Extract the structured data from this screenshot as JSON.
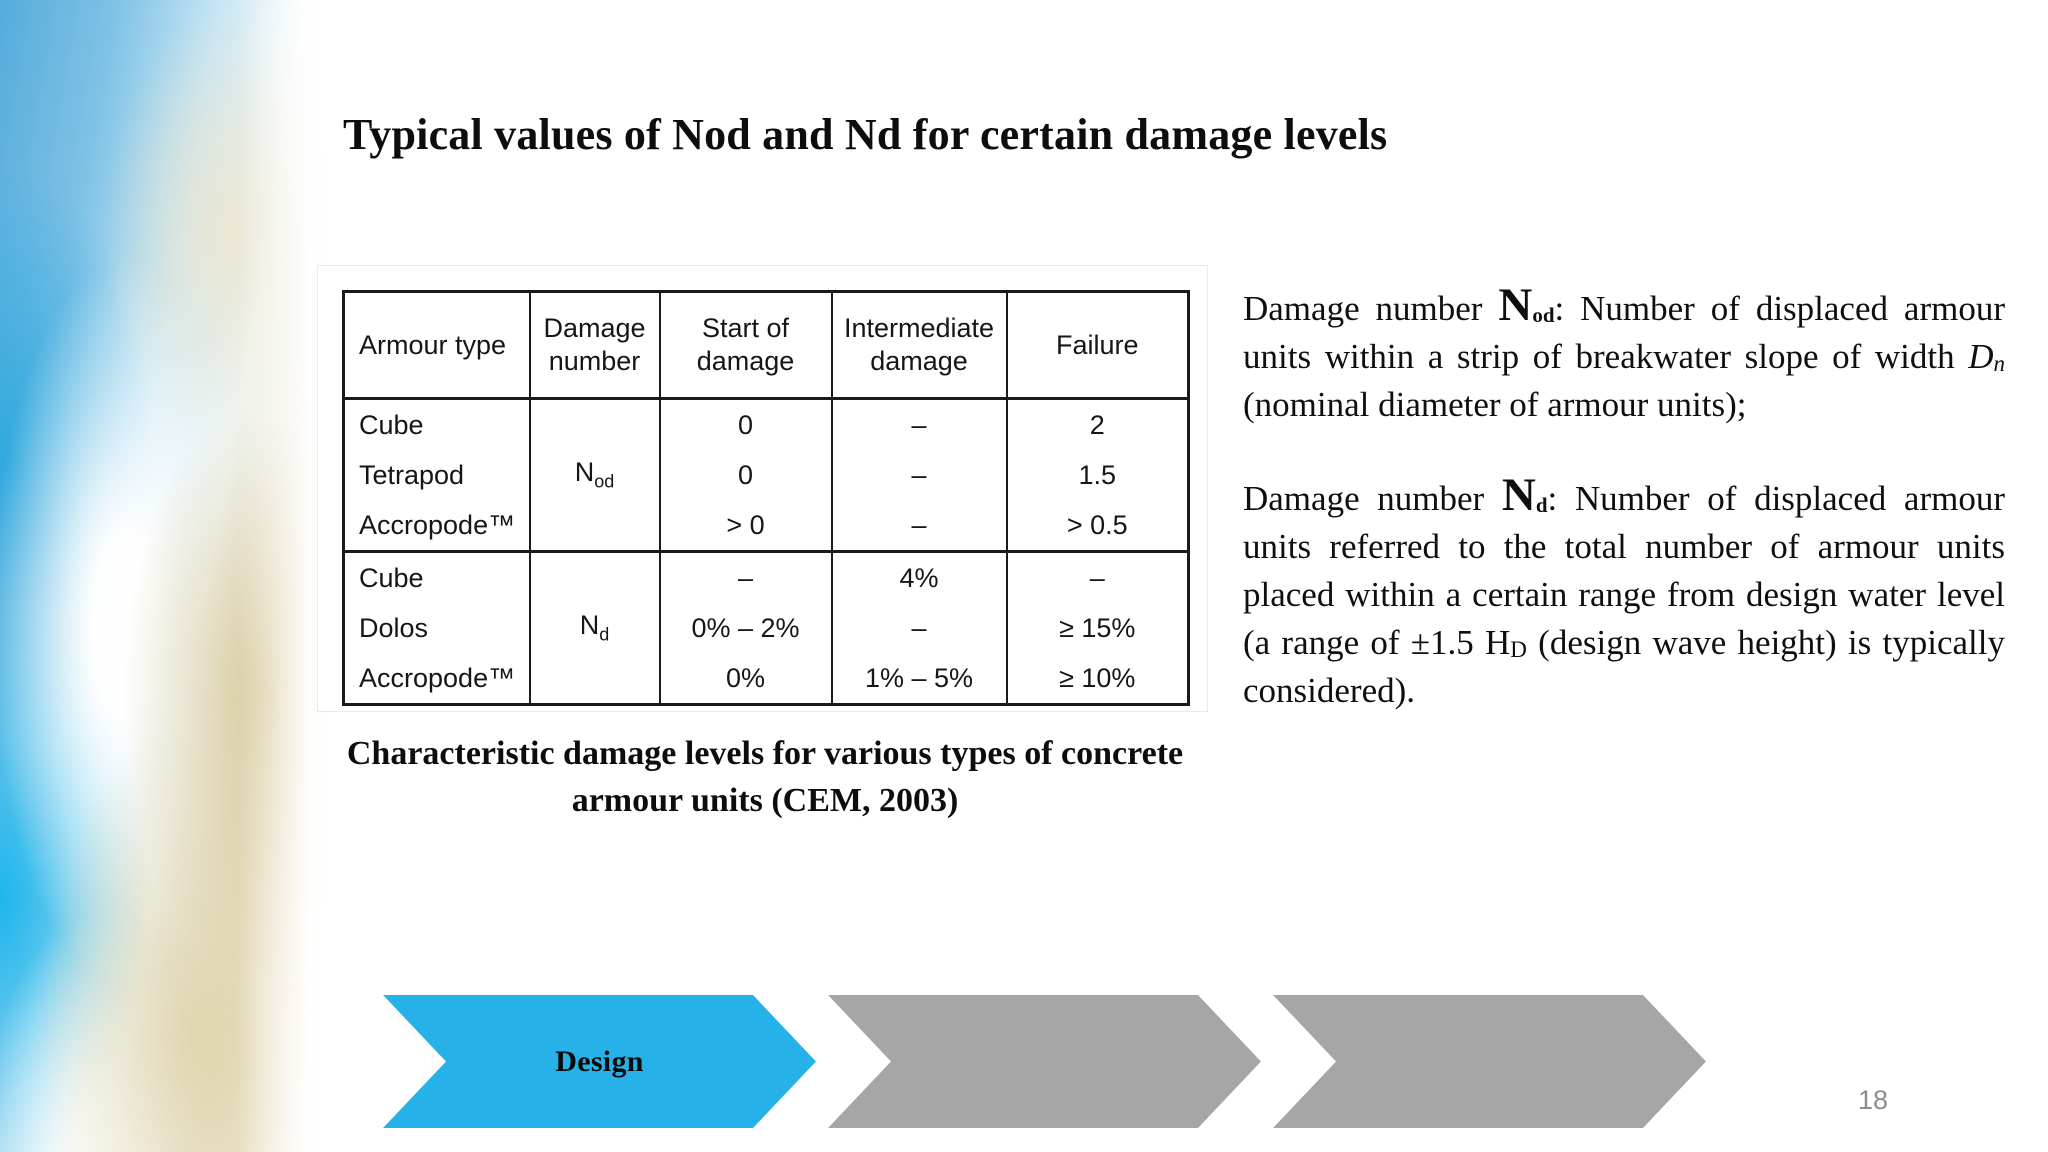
{
  "slide": {
    "title": "Typical values of Nod and Nd for certain damage levels",
    "page_number": "18"
  },
  "table": {
    "caption": "Characteristic damage levels for various types of concrete armour units (CEM, 2003)",
    "headers": [
      "Armour type",
      "Damage number",
      "Start of damage",
      "Intermediate damage",
      "Failure"
    ],
    "sections": [
      {
        "damage_number": {
          "base": "N",
          "sub": "od"
        },
        "rows": [
          {
            "armour_type": "Cube",
            "start_of_damage": "0",
            "intermediate_damage": "–",
            "failure": "2"
          },
          {
            "armour_type": "Tetrapod",
            "start_of_damage": "0",
            "intermediate_damage": "–",
            "failure": "1.5"
          },
          {
            "armour_type": "Accropode™",
            "start_of_damage": "> 0",
            "intermediate_damage": "–",
            "failure": "> 0.5"
          }
        ]
      },
      {
        "damage_number": {
          "base": "N",
          "sub": "d"
        },
        "rows": [
          {
            "armour_type": "Cube",
            "start_of_damage": "–",
            "intermediate_damage": "4%",
            "failure": "–"
          },
          {
            "armour_type": "Dolos",
            "start_of_damage": "0% – 2%",
            "intermediate_damage": "–",
            "failure": "≥ 15%"
          },
          {
            "armour_type": "Accropode™",
            "start_of_damage": "0%",
            "intermediate_damage": "1% – 5%",
            "failure": "≥ 10%"
          }
        ]
      }
    ]
  },
  "definitions": [
    {
      "lead": "Damage number ",
      "symbol": "N",
      "symbol_sub": "od",
      "text_after_symbol": ": Number of displaced armour units within a strip of breakwater slope of width ",
      "variable": "D",
      "variable_sub": "n",
      "text_end": " (nominal diameter of armour units);"
    },
    {
      "lead": "Damage number ",
      "symbol": "N",
      "symbol_sub": "d",
      "text_after_symbol": ": Number of displaced armour units referred to the total number of armour units placed within a certain range from design water level (a range of ±1.5 ",
      "variable": "H",
      "variable_sub": "D",
      "text_end": " (design wave height) is typically considered)."
    }
  ],
  "process_steps": [
    {
      "label": "Design",
      "color": "#26B2E8",
      "state": "active"
    },
    {
      "label": "",
      "color": "#A6A6A6",
      "state": "inactive"
    },
    {
      "label": "",
      "color": "#A6A6A6",
      "state": "inactive"
    }
  ],
  "colors": {
    "accent_blue": "#26B2E8",
    "inactive_gray": "#A6A6A6",
    "text": "#0f0f0f",
    "page_number_gray": "#8C8C8C"
  }
}
